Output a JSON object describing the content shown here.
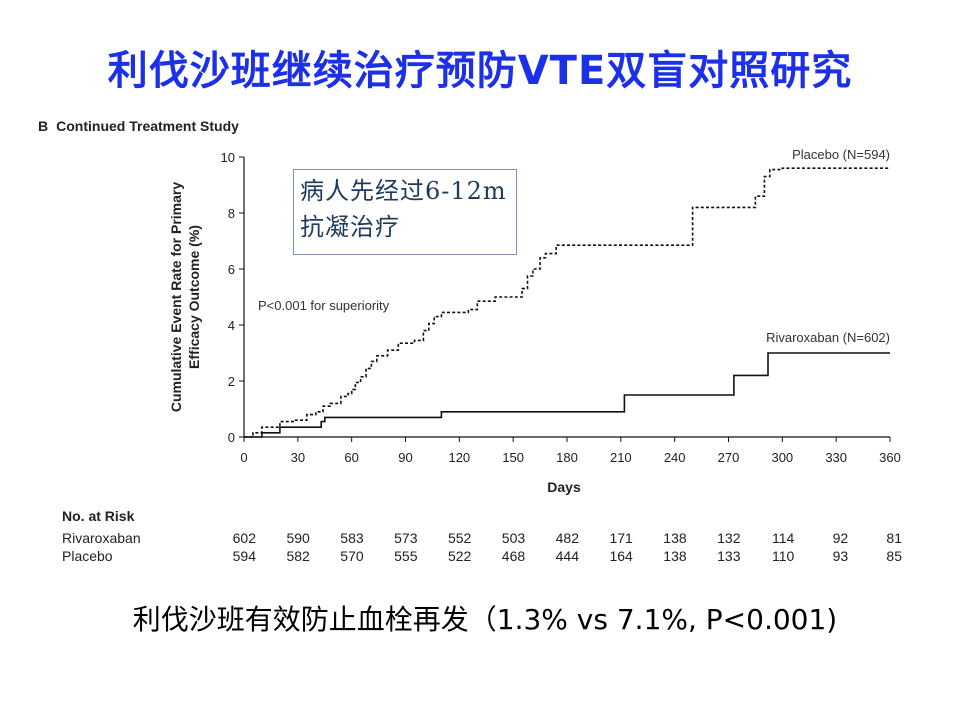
{
  "slide": {
    "title": "利伐沙班继续治疗预防VTE双盲对照研究",
    "panel_letter": "B",
    "panel_title": "Continued Treatment Study",
    "annotation_box": "病人先经过6-12m抗凝治疗",
    "bottom_text": "利伐沙班有效防止血栓再发（1.3% vs 7.1%, P<0.001)"
  },
  "colors": {
    "title": "#1c30e8",
    "line": "#111111",
    "box_border": "#7f94b3",
    "box_text": "#1f3a5b"
  },
  "chart_data": {
    "type": "line",
    "title": "",
    "xlabel": "Days",
    "ylabel": "Cumulative Event Rate for Primary Efficacy Outcome (%)",
    "xlim": [
      0,
      360
    ],
    "ylim": [
      0,
      10
    ],
    "xticks": [
      "0",
      "30",
      "60",
      "90",
      "120",
      "150",
      "180",
      "210",
      "240",
      "270",
      "300",
      "330",
      "360"
    ],
    "yticks": [
      "0",
      "2",
      "4",
      "6",
      "8",
      "10"
    ],
    "grid": false,
    "annotation": "P<0.001 for superiority",
    "series": [
      {
        "name": "Placebo (N=594)",
        "style": "dashed",
        "step": true,
        "points": [
          [
            0,
            0
          ],
          [
            5,
            0.15
          ],
          [
            10,
            0.35
          ],
          [
            20,
            0.55
          ],
          [
            28,
            0.6
          ],
          [
            35,
            0.8
          ],
          [
            40,
            0.9
          ],
          [
            44,
            1.1
          ],
          [
            48,
            1.2
          ],
          [
            54,
            1.45
          ],
          [
            58,
            1.55
          ],
          [
            60,
            1.7
          ],
          [
            62,
            1.95
          ],
          [
            65,
            2.15
          ],
          [
            68,
            2.45
          ],
          [
            71,
            2.7
          ],
          [
            74,
            2.9
          ],
          [
            80,
            3.1
          ],
          [
            86,
            3.35
          ],
          [
            95,
            3.45
          ],
          [
            100,
            3.8
          ],
          [
            103,
            4.05
          ],
          [
            106,
            4.3
          ],
          [
            110,
            4.45
          ],
          [
            125,
            4.55
          ],
          [
            130,
            4.85
          ],
          [
            140,
            5.0
          ],
          [
            155,
            5.3
          ],
          [
            158,
            5.75
          ],
          [
            161,
            6.0
          ],
          [
            165,
            6.4
          ],
          [
            168,
            6.55
          ],
          [
            174,
            6.85
          ],
          [
            250,
            8.2
          ],
          [
            285,
            8.6
          ],
          [
            290,
            9.3
          ],
          [
            293,
            9.55
          ],
          [
            300,
            9.6
          ],
          [
            360,
            9.6
          ]
        ]
      },
      {
        "name": "Rivaroxaban (N=602)",
        "style": "solid",
        "step": true,
        "points": [
          [
            0,
            0
          ],
          [
            10,
            0.15
          ],
          [
            20,
            0.35
          ],
          [
            43,
            0.55
          ],
          [
            45,
            0.7
          ],
          [
            110,
            0.9
          ],
          [
            212,
            1.5
          ],
          [
            273,
            2.2
          ],
          [
            292,
            3.0
          ],
          [
            360,
            3.0
          ]
        ]
      }
    ]
  },
  "risk_table": {
    "title": "No. at Risk",
    "rows": [
      {
        "label": "Rivaroxaban",
        "values": [
          "602",
          "590",
          "583",
          "573",
          "552",
          "503",
          "482",
          "171",
          "138",
          "132",
          "114",
          "92",
          "81"
        ]
      },
      {
        "label": "Placebo",
        "values": [
          "594",
          "582",
          "570",
          "555",
          "522",
          "468",
          "444",
          "164",
          "138",
          "133",
          "110",
          "93",
          "85"
        ]
      }
    ]
  }
}
